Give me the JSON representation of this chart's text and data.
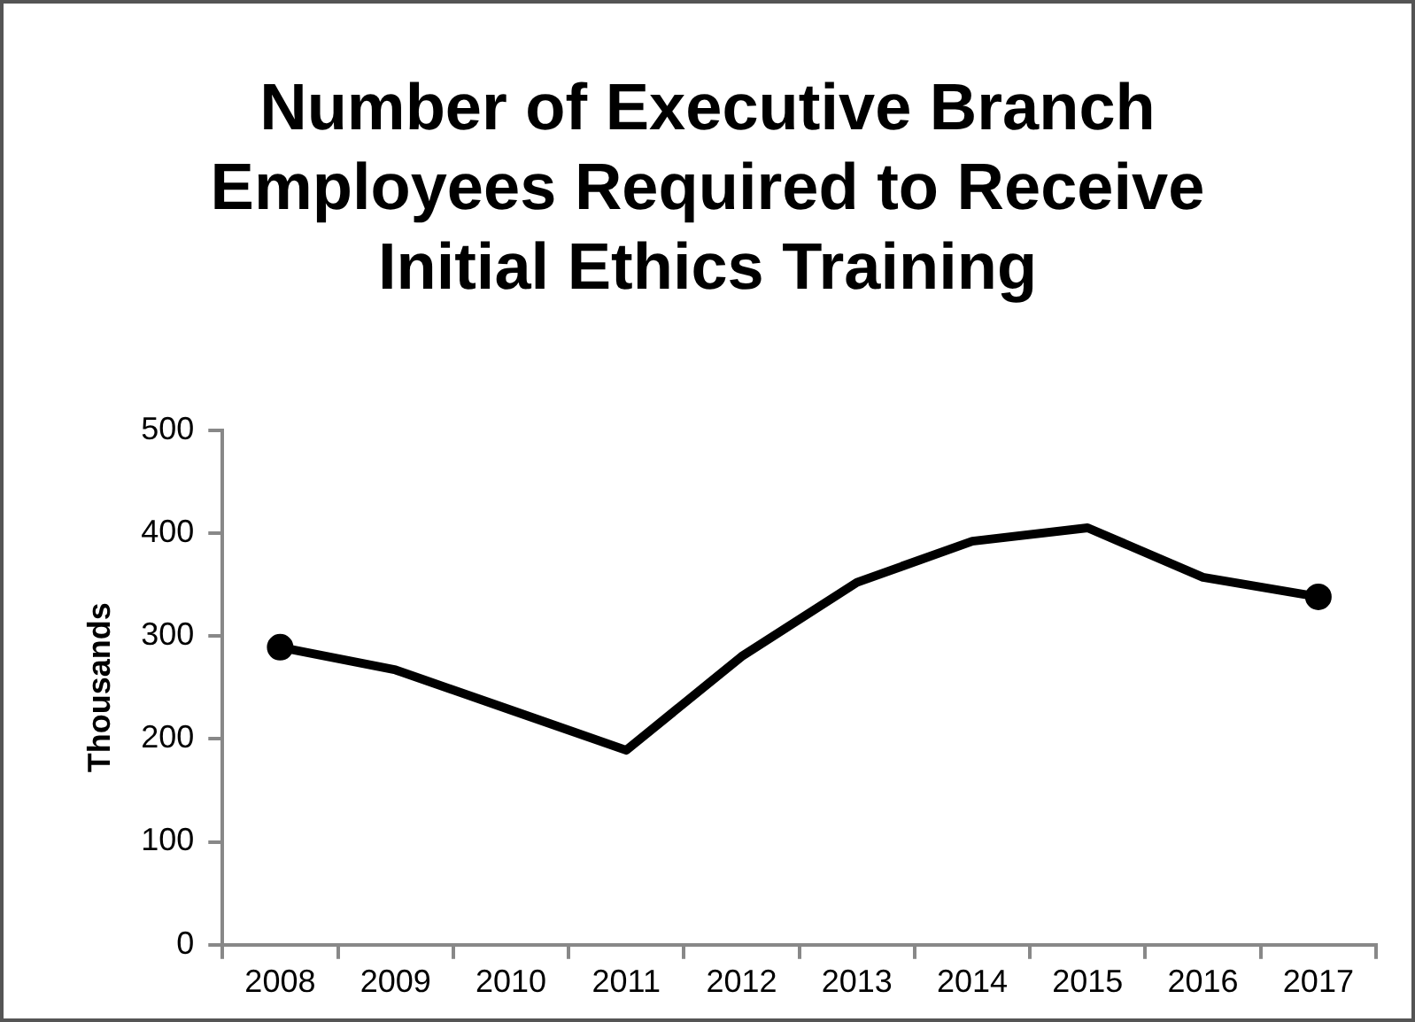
{
  "chart_data": {
    "type": "line",
    "title": "Number of Executive Branch Employees Required to Receive Initial Ethics Training",
    "ylabel": "Thousands",
    "categories": [
      "2008",
      "2009",
      "2010",
      "2011",
      "2012",
      "2013",
      "2014",
      "2015",
      "2016",
      "2017"
    ],
    "series": [
      {
        "color": "#000000",
        "values": [
          289,
          267,
          228,
          189,
          280,
          352,
          392,
          405,
          357,
          338
        ],
        "marker": "none"
      },
      {
        "type": "scatter",
        "color": "#000000",
        "values": [
          289,
          null,
          null,
          null,
          null,
          null,
          null,
          null,
          null,
          338
        ],
        "marker": "circle"
      }
    ],
    "ylim": [
      0,
      500
    ],
    "yticks": [
      0,
      100,
      200,
      300,
      400,
      500
    ],
    "grid": false,
    "legend": false,
    "line_style": "solid"
  }
}
